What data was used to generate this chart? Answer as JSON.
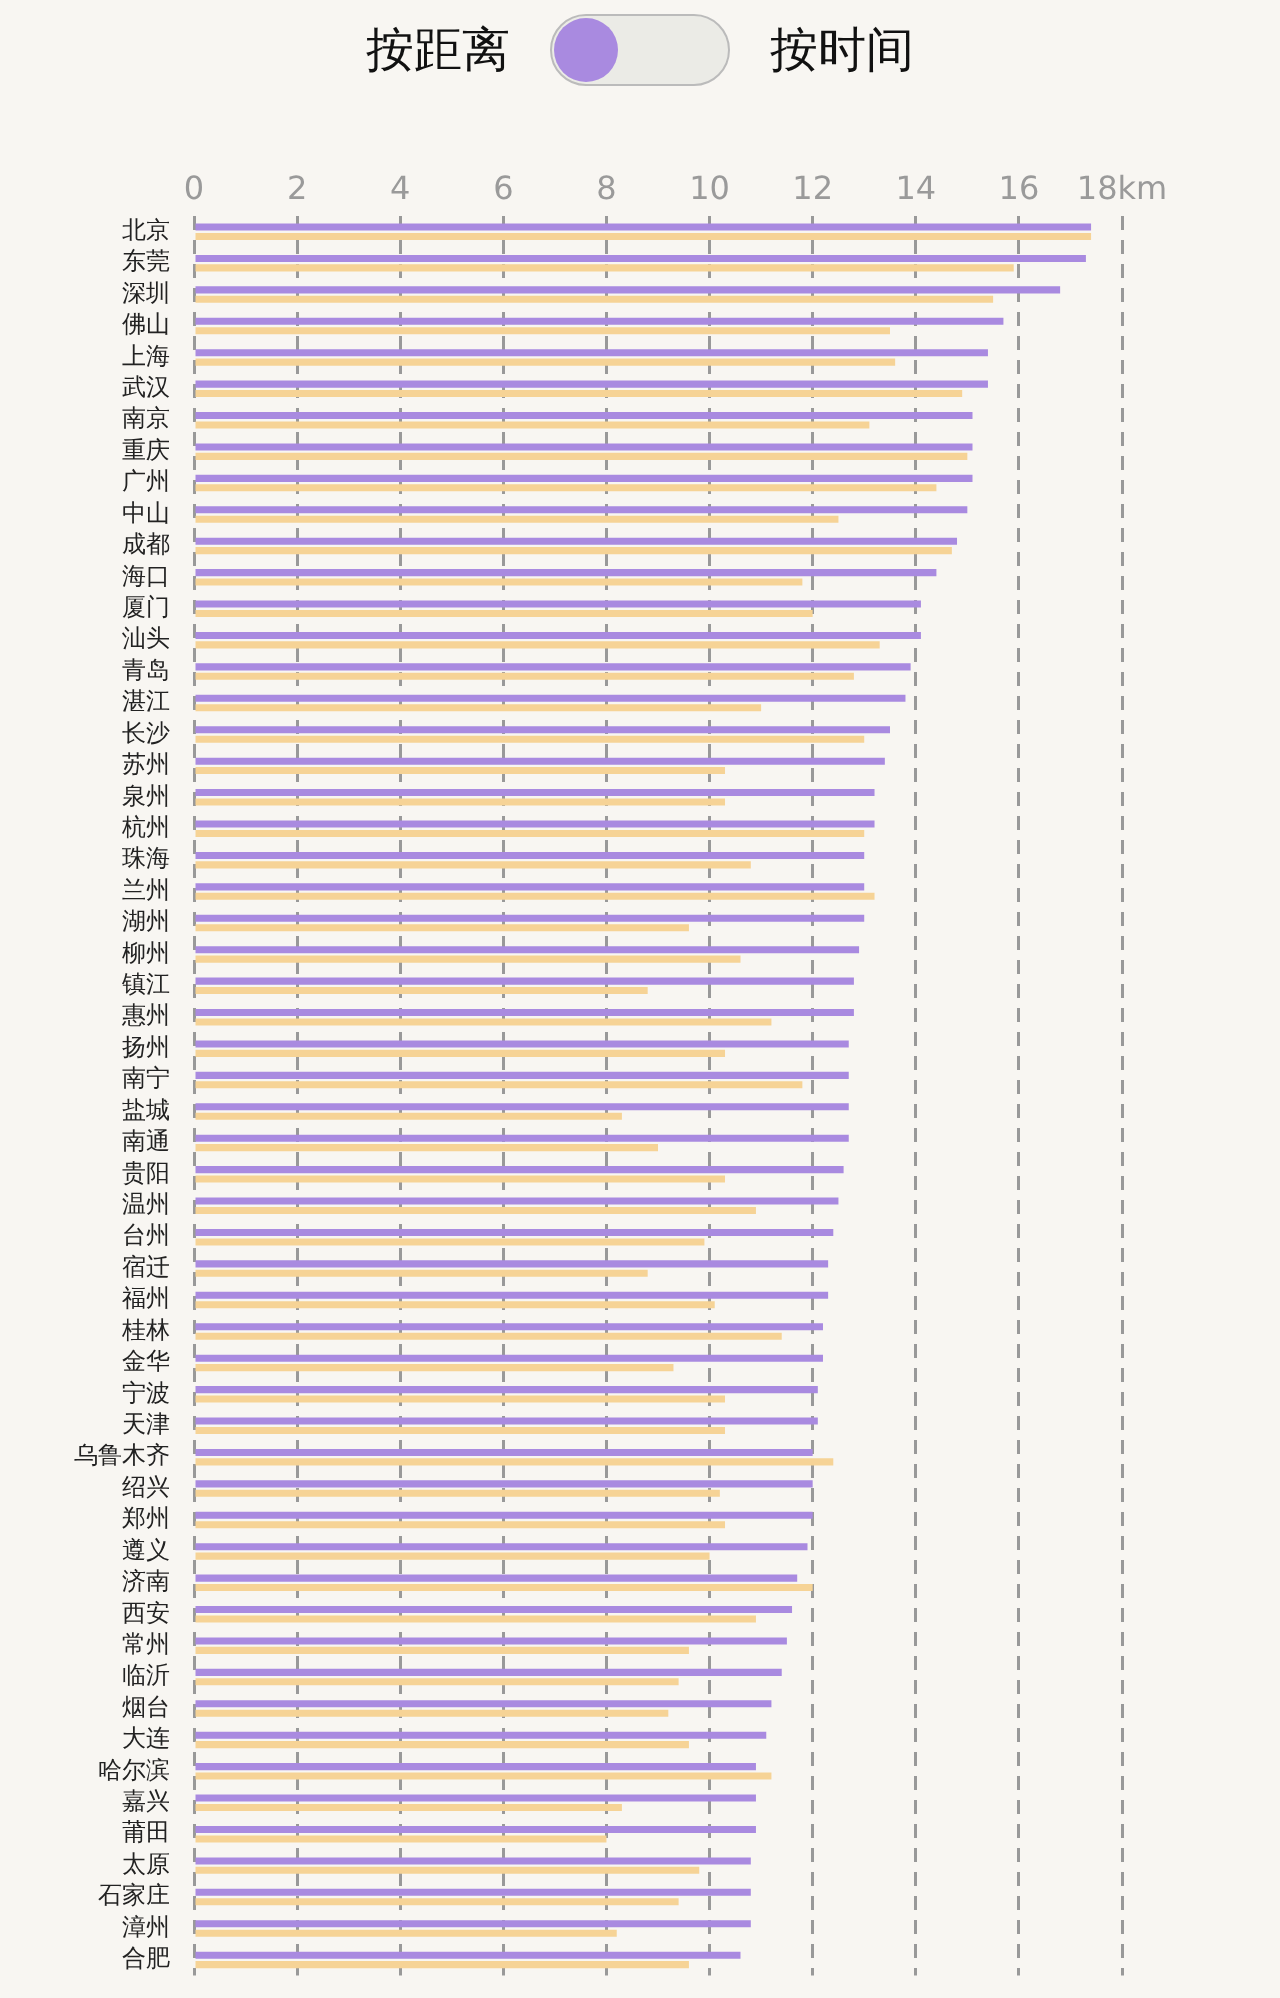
{
  "chart_data": {
    "type": "bar",
    "orientation": "horizontal",
    "annotations": [
      "按距离",
      "按时间"
    ],
    "categories": [
      "北京",
      "东莞",
      "深圳",
      "佛山",
      "上海",
      "武汉",
      "南京",
      "重庆",
      "广州",
      "中山",
      "成都",
      "海口",
      "厦门",
      "汕头",
      "青岛",
      "湛江",
      "长沙",
      "苏州",
      "泉州",
      "杭州",
      "珠海",
      "兰州",
      "湖州",
      "柳州",
      "镇江",
      "惠州",
      "扬州",
      "南宁",
      "盐城",
      "南通",
      "贵阳",
      "温州",
      "台州",
      "宿迁",
      "福州",
      "桂林",
      "金华",
      "宁波",
      "天津",
      "乌鲁木齐",
      "绍兴",
      "郑州",
      "遵义",
      "济南",
      "西安",
      "常州",
      "临沂",
      "烟台",
      "大连",
      "哈尔滨",
      "嘉兴",
      "莆田",
      "太原",
      "石家庄",
      "漳州",
      "合肥"
    ],
    "series": [
      {
        "color": "#a98ae0",
        "values": [
          17.4,
          17.3,
          16.8,
          15.7,
          15.4,
          15.4,
          15.1,
          15.1,
          15.1,
          15.0,
          14.8,
          14.4,
          14.1,
          14.1,
          13.9,
          13.8,
          13.5,
          13.4,
          13.2,
          13.2,
          13.0,
          13.0,
          13.0,
          12.9,
          12.8,
          12.8,
          12.7,
          12.7,
          12.7,
          12.7,
          12.6,
          12.5,
          12.4,
          12.3,
          12.3,
          12.2,
          12.2,
          12.1,
          12.1,
          12.0,
          12.0,
          12.0,
          11.9,
          11.7,
          11.6,
          11.5,
          11.4,
          11.2,
          11.1,
          10.9,
          10.9,
          10.9,
          10.8,
          10.8,
          10.8,
          10.6
        ]
      },
      {
        "color": "#f6d396",
        "values": [
          17.4,
          15.9,
          15.5,
          13.5,
          13.6,
          14.9,
          13.1,
          15.0,
          14.4,
          12.5,
          14.7,
          11.8,
          12.0,
          13.3,
          12.8,
          11.0,
          13.0,
          10.3,
          10.3,
          13.0,
          10.8,
          13.2,
          9.6,
          10.6,
          8.8,
          11.2,
          10.3,
          11.8,
          8.3,
          9.0,
          10.3,
          10.9,
          9.9,
          8.8,
          10.1,
          11.4,
          9.3,
          10.3,
          10.3,
          12.4,
          10.2,
          10.3,
          10.0,
          12.0,
          10.9,
          9.6,
          9.4,
          9.2,
          9.6,
          11.2,
          8.3,
          8.0,
          9.8,
          9.4,
          8.2,
          9.6
        ]
      }
    ],
    "xlim": [
      0,
      18
    ],
    "xticks": [
      0,
      2,
      4,
      6,
      8,
      10,
      12,
      14,
      16,
      {
        "value": 18,
        "label": "18km"
      }
    ],
    "grid": "x"
  }
}
